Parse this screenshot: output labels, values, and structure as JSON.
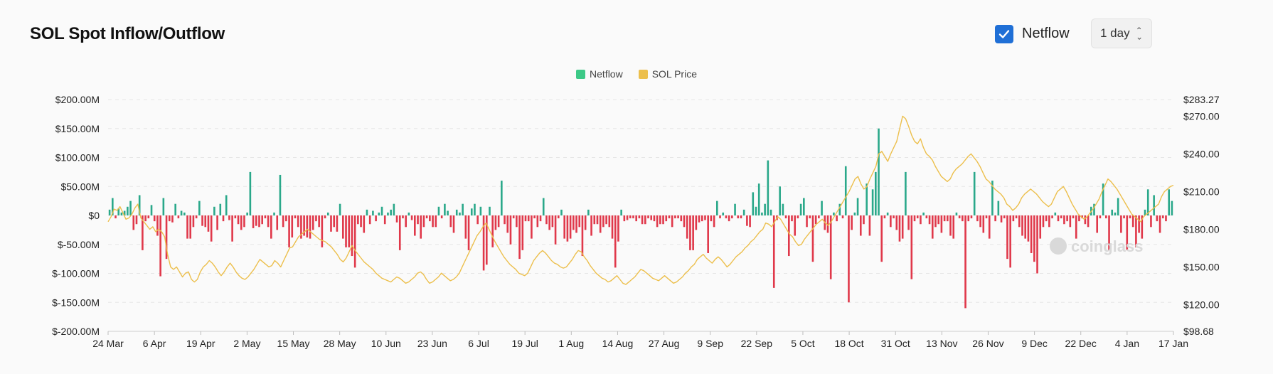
{
  "header": {
    "title": "SOL Spot Inflow/Outflow"
  },
  "controls": {
    "netflow_label": "Netflow",
    "netflow_checked": true,
    "interval_label": "1 day"
  },
  "watermark": "coinglass",
  "colors": {
    "inflow": "#2aa88a",
    "outflow": "#e0384a",
    "price": "#ecbf4c",
    "legend_netflow": "#3dc987",
    "check": "#1f6fd6"
  },
  "chart_data": {
    "type": "bar",
    "series": [
      {
        "name": "Netflow",
        "type": "bar",
        "unit": "USD millions",
        "values": [
          10,
          30,
          -5,
          12,
          5,
          8,
          15,
          25,
          -25,
          -15,
          35,
          -60,
          -10,
          -5,
          18,
          -10,
          -35,
          -105,
          30,
          -75,
          -10,
          -12,
          20,
          -5,
          8,
          5,
          -40,
          -40,
          -20,
          -5,
          25,
          -18,
          -20,
          -28,
          -45,
          15,
          -25,
          20,
          -10,
          35,
          -8,
          -45,
          -5,
          -15,
          -25,
          -20,
          5,
          75,
          -22,
          -18,
          -20,
          -15,
          -5,
          -20,
          -40,
          5,
          -25,
          70,
          -20,
          -10,
          -55,
          -38,
          -5,
          -20,
          -40,
          -35,
          -38,
          -40,
          -25,
          -10,
          -20,
          -55,
          -5,
          5,
          -28,
          -20,
          -28,
          20,
          -40,
          -55,
          -55,
          -70,
          -90,
          -15,
          -20,
          -30,
          10,
          -15,
          8,
          -10,
          5,
          15,
          -15,
          5,
          10,
          20,
          -12,
          -60,
          -5,
          -20,
          5,
          -8,
          -35,
          -15,
          -40,
          -20,
          -5,
          -10,
          -20,
          -20,
          15,
          -5,
          20,
          8,
          -20,
          -30,
          10,
          5,
          20,
          -40,
          -60,
          12,
          20,
          -15,
          15,
          -95,
          -85,
          15,
          -55,
          -25,
          -20,
          60,
          -15,
          -30,
          -50,
          -5,
          -20,
          -75,
          -60,
          -10,
          -10,
          -40,
          -5,
          -20,
          -10,
          30,
          -15,
          -25,
          -20,
          -50,
          -5,
          10,
          -40,
          -45,
          -40,
          -25,
          -30,
          -20,
          -70,
          -25,
          10,
          -35,
          -15,
          -15,
          -30,
          -20,
          -15,
          -20,
          -40,
          -90,
          -45,
          10,
          -10,
          -8,
          -5,
          -5,
          -10,
          -5,
          -15,
          -15,
          -5,
          -8,
          -10,
          -20,
          -15,
          -15,
          -10,
          -5,
          -20,
          -5,
          -5,
          -10,
          -20,
          -40,
          -60,
          -60,
          -25,
          -12,
          -10,
          -8,
          -65,
          -10,
          -20,
          25,
          -5,
          5,
          -5,
          -10,
          -5,
          20,
          -5,
          -5,
          10,
          -18,
          -20,
          40,
          15,
          55,
          5,
          20,
          95,
          10,
          -125,
          -8,
          50,
          20,
          -5,
          -70,
          -10,
          -35,
          -5,
          20,
          30,
          -20,
          -5,
          -80,
          -15,
          -5,
          25,
          -25,
          -30,
          -110,
          5,
          -10,
          20,
          -5,
          85,
          -150,
          -25,
          5,
          30,
          -35,
          -15,
          55,
          -35,
          45,
          75,
          150,
          -80,
          -5,
          5,
          -20,
          -5,
          -25,
          -45,
          -40,
          75,
          -25,
          -110,
          -10,
          -5,
          -15,
          5,
          -5,
          -15,
          -40,
          -20,
          -15,
          -30,
          -10,
          -10,
          -35,
          -40,
          5,
          -5,
          -10,
          -160,
          -10,
          -5,
          75,
          -10,
          -20,
          -30,
          -5,
          -40,
          60,
          -10,
          25,
          -12,
          -5,
          -75,
          -90,
          -10,
          -5,
          -20,
          -35,
          -40,
          -45,
          -65,
          -80,
          -100,
          -40,
          -20,
          -10,
          -20,
          -5,
          5,
          -10,
          -5,
          -15,
          -10,
          -20,
          -5,
          -40,
          -10,
          -5,
          -15,
          -20,
          15,
          20,
          -30,
          -5,
          55,
          -5,
          -60,
          10,
          5,
          30,
          -30,
          -5,
          -60,
          -5,
          -20,
          -55,
          -30,
          -40,
          10,
          45,
          -20,
          35,
          -10,
          -30,
          -5,
          -10,
          45,
          25
        ]
      },
      {
        "name": "SOL Price",
        "type": "line",
        "unit": "USD",
        "values": [
          186,
          190,
          196,
          195,
          198,
          193,
          188,
          189,
          192,
          197,
          200,
          189,
          186,
          183,
          180,
          182,
          178,
          180,
          178,
          174,
          160,
          150,
          148,
          150,
          146,
          142,
          145,
          146,
          140,
          138,
          140,
          146,
          150,
          152,
          155,
          153,
          150,
          146,
          143,
          146,
          150,
          153,
          150,
          146,
          143,
          141,
          140,
          142,
          145,
          148,
          152,
          156,
          154,
          152,
          150,
          151,
          155,
          153,
          150,
          155,
          160,
          165,
          166,
          170,
          174,
          176,
          178,
          180,
          178,
          176,
          174,
          172,
          171,
          170,
          168,
          166,
          163,
          160,
          156,
          154,
          157,
          162,
          167,
          163,
          160,
          157,
          154,
          152,
          150,
          148,
          145,
          143,
          141,
          140,
          139,
          138,
          140,
          142,
          141,
          139,
          137,
          138,
          140,
          142,
          145,
          146,
          144,
          140,
          137,
          138,
          140,
          142,
          145,
          143,
          141,
          139,
          140,
          142,
          145,
          150,
          155,
          160,
          165,
          170,
          175,
          178,
          182,
          185,
          180,
          175,
          170,
          166,
          162,
          158,
          155,
          152,
          150,
          148,
          145,
          144,
          143,
          145,
          150,
          155,
          158,
          161,
          163,
          161,
          158,
          155,
          153,
          152,
          150,
          149,
          150,
          153,
          156,
          160,
          163,
          162,
          158,
          155,
          151,
          148,
          145,
          143,
          141,
          140,
          138,
          139,
          141,
          143,
          140,
          137,
          136,
          138,
          140,
          142,
          145,
          148,
          147,
          145,
          143,
          141,
          140,
          139,
          141,
          143,
          141,
          139,
          137,
          138,
          140,
          142,
          145,
          147,
          150,
          152,
          156,
          158,
          160,
          157,
          155,
          153,
          156,
          158,
          156,
          153,
          150,
          152,
          155,
          158,
          160,
          162,
          165,
          167,
          170,
          172,
          175,
          178,
          180,
          185,
          184,
          182,
          186,
          190,
          188,
          184,
          180,
          176,
          174,
          170,
          167,
          168,
          172,
          175,
          178,
          181,
          184,
          186,
          188,
          185,
          183,
          186,
          190,
          194,
          198,
          202,
          206,
          210,
          215,
          220,
          222,
          216,
          212,
          214,
          220,
          225,
          230,
          240,
          242,
          238,
          234,
          240,
          245,
          250,
          260,
          270,
          268,
          262,
          255,
          250,
          248,
          252,
          245,
          240,
          238,
          235,
          230,
          226,
          222,
          220,
          218,
          220,
          225,
          228,
          230,
          232,
          235,
          238,
          240,
          237,
          234,
          230,
          225,
          220,
          218,
          215,
          212,
          210,
          208,
          205,
          200,
          198,
          195,
          197,
          200,
          205,
          208,
          210,
          212,
          210,
          208,
          205,
          202,
          200,
          198,
          200,
          205,
          210,
          212,
          214,
          210,
          205,
          200,
          196,
          192,
          190,
          188,
          190,
          193,
          196,
          200,
          204,
          210,
          215,
          220,
          218,
          215,
          212,
          208,
          204,
          200,
          196,
          192,
          190,
          188,
          186,
          190,
          192,
          194,
          196,
          198,
          200,
          206,
          210,
          212,
          214,
          215
        ]
      }
    ],
    "x_ticks": [
      "24 Mar",
      "6 Apr",
      "19 Apr",
      "2 May",
      "15 May",
      "28 May",
      "10 Jun",
      "23 Jun",
      "6 Jul",
      "19 Jul",
      "1 Aug",
      "14 Aug",
      "27 Aug",
      "9 Sep",
      "22 Sep",
      "5 Oct",
      "18 Oct",
      "31 Oct",
      "13 Nov",
      "26 Nov",
      "9 Dec",
      "22 Dec",
      "4 Jan",
      "17 Jan"
    ],
    "y_left_ticks": [
      "$200.00M",
      "$150.00M",
      "$100.00M",
      "$50.00M",
      "$0",
      "$-50.00M",
      "$-100.00M",
      "$-150.00M",
      "$-200.00M"
    ],
    "y_left_values": [
      200,
      150,
      100,
      50,
      0,
      -50,
      -100,
      -150,
      -200
    ],
    "y_left_range": [
      -200,
      200
    ],
    "y_right_ticks": [
      "$283.27",
      "$270.00",
      "$240.00",
      "$210.00",
      "$180.00",
      "$150.00",
      "$120.00",
      "$98.68"
    ],
    "y_right_values": [
      283.27,
      270,
      240,
      210,
      180,
      150,
      120,
      98.68
    ],
    "y_right_range": [
      98.68,
      283.27
    ],
    "grid": true,
    "legend_position": "top-center"
  }
}
